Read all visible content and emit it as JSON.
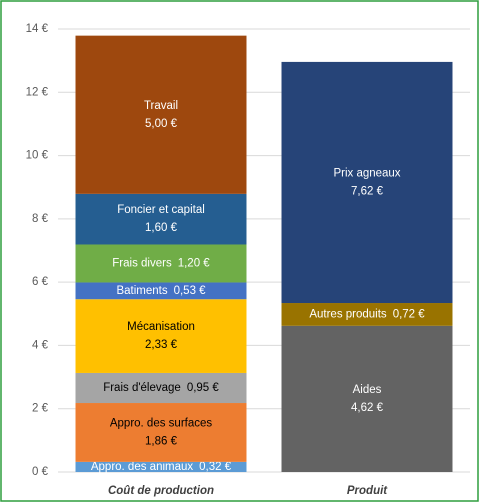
{
  "chart_data": {
    "type": "stacked_bar",
    "categories": [
      "Coût de production",
      "Produit"
    ],
    "series": [
      {
        "name": "Appro. des animaux",
        "color": "#5b9bd5",
        "values": [
          0.32,
          null
        ],
        "value_labels": [
          "0,32 €",
          null
        ]
      },
      {
        "name": "Appro. des surfaces",
        "color": "#ed7d31",
        "values": [
          1.86,
          null
        ],
        "value_labels": [
          "1,86 €",
          null
        ]
      },
      {
        "name": "Frais d'élevage",
        "color": "#a5a5a5",
        "values": [
          0.95,
          null
        ],
        "value_labels": [
          "0,95 €",
          null
        ]
      },
      {
        "name": "Mécanisation",
        "color": "#ffc000",
        "values": [
          2.33,
          null
        ],
        "value_labels": [
          "2,33 €",
          null
        ]
      },
      {
        "name": "Batiments",
        "color": "#4472c4",
        "values": [
          0.53,
          null
        ],
        "value_labels": [
          "0,53 €",
          null
        ]
      },
      {
        "name": "Frais divers",
        "color": "#70ad47",
        "values": [
          1.2,
          null
        ],
        "value_labels": [
          "1,20 €",
          null
        ]
      },
      {
        "name": "Foncier et capital",
        "color": "#255e91",
        "values": [
          1.6,
          null
        ],
        "value_labels": [
          "1,60 €",
          null
        ]
      },
      {
        "name": "Travail",
        "color": "#9e480e",
        "values": [
          5.0,
          null
        ],
        "value_labels": [
          "5,00 €",
          null
        ]
      },
      {
        "name": "Aides",
        "color": "#636363",
        "values": [
          null,
          4.62
        ],
        "value_labels": [
          null,
          "4,62 €"
        ]
      },
      {
        "name": "Autres produits",
        "color": "#997300",
        "values": [
          null,
          0.72
        ],
        "value_labels": [
          null,
          "0,72 €"
        ]
      },
      {
        "name": "Prix agneaux",
        "color": "#264478",
        "values": [
          null,
          7.62
        ],
        "value_labels": [
          null,
          "7,62 €"
        ]
      }
    ],
    "ylim": [
      0,
      14
    ],
    "yticks": [
      {
        "value": 0,
        "label": "0 €"
      },
      {
        "value": 2,
        "label": "2 €"
      },
      {
        "value": 4,
        "label": "4 €"
      },
      {
        "value": 6,
        "label": "6 €"
      },
      {
        "value": 8,
        "label": "8 €"
      },
      {
        "value": 10,
        "label": "10 €"
      },
      {
        "value": 12,
        "label": "12 €"
      },
      {
        "value": 14,
        "label": "14 €"
      }
    ],
    "grid": true
  }
}
